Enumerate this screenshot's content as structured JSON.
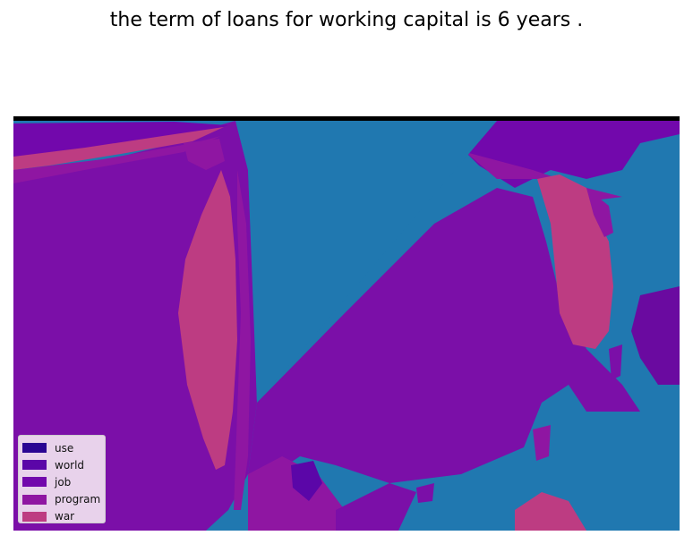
{
  "title": "the term of loans for working capital is 6 years .",
  "colors": {
    "background": "#2078b0",
    "frame": "#000000",
    "land_main": "#7b0fa8",
    "land_dark": "#6a0aa0"
  },
  "legend": {
    "position": "lower-left",
    "items": [
      {
        "label": "use",
        "color": "#2a0593"
      },
      {
        "label": "world",
        "color": "#5b06a8"
      },
      {
        "label": "job",
        "color": "#7208ac"
      },
      {
        "label": "program",
        "color": "#8f16a2"
      },
      {
        "label": "war",
        "color": "#bd3c82"
      }
    ]
  }
}
